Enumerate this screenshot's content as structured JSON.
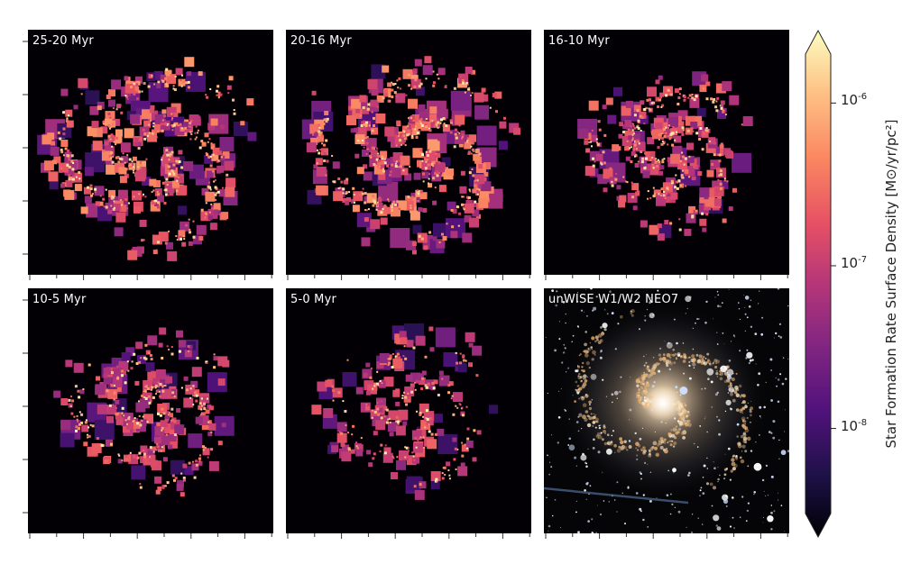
{
  "chart_data": {
    "type": "heatmap",
    "panels": [
      {
        "label": "25-20 Myr",
        "extent_x": 0.86,
        "extent_y": 0.82,
        "density": 0.62,
        "coarse": 0.55,
        "level": 0.7
      },
      {
        "label": "20-16 Myr",
        "extent_x": 0.86,
        "extent_y": 0.82,
        "density": 0.62,
        "coarse": 0.55,
        "level": 0.72
      },
      {
        "label": "16-10 Myr",
        "extent_x": 0.7,
        "extent_y": 0.66,
        "density": 0.5,
        "coarse": 0.15,
        "level": 0.55
      },
      {
        "label": "10-5 Myr",
        "extent_x": 0.74,
        "extent_y": 0.7,
        "density": 0.42,
        "coarse": 0.2,
        "level": 0.5
      },
      {
        "label": "5-0 Myr",
        "extent_x": 0.72,
        "extent_y": 0.7,
        "density": 0.34,
        "coarse": 0.2,
        "level": 0.48
      },
      {
        "label": "unWISE W1/W2 NEO7",
        "image": "galaxy"
      }
    ],
    "colorbar": {
      "title": "Star Formation Rate Surface Density [M⊙/yr/pc²]",
      "scale": "log",
      "colormap": "magma",
      "range": [
        3e-09,
        2e-06
      ],
      "ticks": [
        {
          "value": 1e-06,
          "base": "10",
          "exp": "-6"
        },
        {
          "value": 1e-07,
          "base": "10",
          "exp": "-7"
        },
        {
          "value": 1e-08,
          "base": "10",
          "exp": "-8"
        }
      ],
      "extend": "both"
    },
    "grid": false
  }
}
